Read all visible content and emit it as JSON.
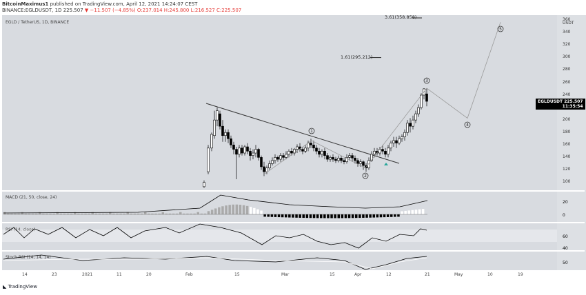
{
  "header": {
    "line1_user": "BitcoinMaximus1",
    "line1_rest": "published on TradingView.com, April 12, 2021 14:24:07 CEST",
    "line2_prefix": "BINANCE:EGLDUSDT, 1D",
    "line2_price": "225.507",
    "line2_change": "▼ −11.507 (−4.85%)",
    "line2_ohlc": "O:237.014 H:245.800 L:216.527 C:225.507"
  },
  "chart_title": "EGLD / TetherUS, 1D, BINANCE",
  "currency": "USDT",
  "price_axis": [
    "360",
    "340",
    "320",
    "300",
    "280",
    "260",
    "240",
    "220",
    "200",
    "180",
    "160",
    "140",
    "120",
    "100"
  ],
  "price_tag": {
    "symbol": "EGLDUSDT",
    "price": "225.507",
    "timer": "11:35:54"
  },
  "fib_labels": {
    "upper": "3.61(358.858)",
    "lower": "1.61(295.212)"
  },
  "wave_labels": [
    "1",
    "2",
    "3",
    "4",
    "5"
  ],
  "macd": {
    "label": "MACD (21, 50, close, 24)",
    "ticks": [
      "20",
      "0"
    ]
  },
  "rsi": {
    "label": "RSI (14, close)",
    "ticks": [
      "60",
      "40"
    ]
  },
  "stoch": {
    "label": "Stoch RSI (14, 14, 14)",
    "ticks": [
      "50"
    ]
  },
  "time_axis": [
    "14",
    "23",
    "2021",
    "11",
    "20",
    "Feb",
    "15",
    "Mar",
    "15",
    "Apr",
    "12",
    "21",
    "May",
    "10",
    "19"
  ],
  "logo_text": "TradingView",
  "colors": {
    "bg": "#d8dbe0",
    "candle": "#000000",
    "wave": "#9a9a9a"
  }
}
